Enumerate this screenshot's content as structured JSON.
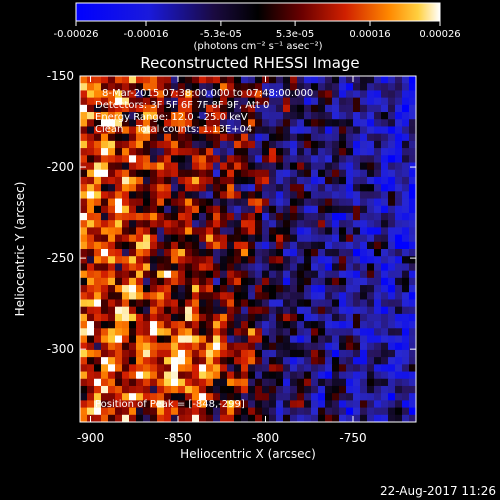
{
  "colorbar": {
    "tick_labels": [
      "-0.00026",
      "-0.00016",
      "-5.3e-05",
      "5.3e-05",
      "0.00016",
      "0.00026"
    ],
    "tick_values": [
      -0.00026,
      -0.00016,
      -5.3e-05,
      5.3e-05,
      0.00016,
      0.00026
    ],
    "range": [
      -0.00026,
      0.00026
    ],
    "unit_label": "(photons cm⁻² s⁻¹ asec⁻²)",
    "colors": [
      "#0000ff",
      "#1020e0",
      "#201060",
      "#000000",
      "#5a0000",
      "#c01000",
      "#ff6000",
      "#ffc020",
      "#ffffff"
    ]
  },
  "plot": {
    "title": "Reconstructed RHESSI Image",
    "annotations": [
      "8-Mar-2015 07:38:00.000 to 07:48:00.000",
      "Detectors: 3F 5F 6F 7F 8F 9F, Att 0",
      "Energy Range: 12.0 - 25.0 keV",
      "Clean    Total counts: 1.13E+04"
    ],
    "peak_label": "Position of Peak = [-848,-299]",
    "timestamp": "22-Aug-2017 11:26"
  },
  "chart_data": {
    "type": "heatmap",
    "title": "Reconstructed RHESSI Image",
    "xlabel": "Heliocentric X (arcsec)",
    "ylabel": "Heliocentric Y (arcsec)",
    "xlim": [
      -906,
      -714
    ],
    "ylim": [
      -340,
      -150
    ],
    "x_ticks": [
      -900,
      -850,
      -800,
      -750
    ],
    "y_ticks": [
      -300,
      -250,
      -200,
      -150
    ],
    "x_tick_labels": [
      "-900",
      "-850",
      "-800",
      "-750"
    ],
    "y_tick_labels": [
      "-300",
      "-250",
      "-200",
      "-150"
    ],
    "grid": false,
    "peak": [
      -848,
      -299
    ],
    "value_range": [
      -0.00026,
      0.00026
    ]
  }
}
